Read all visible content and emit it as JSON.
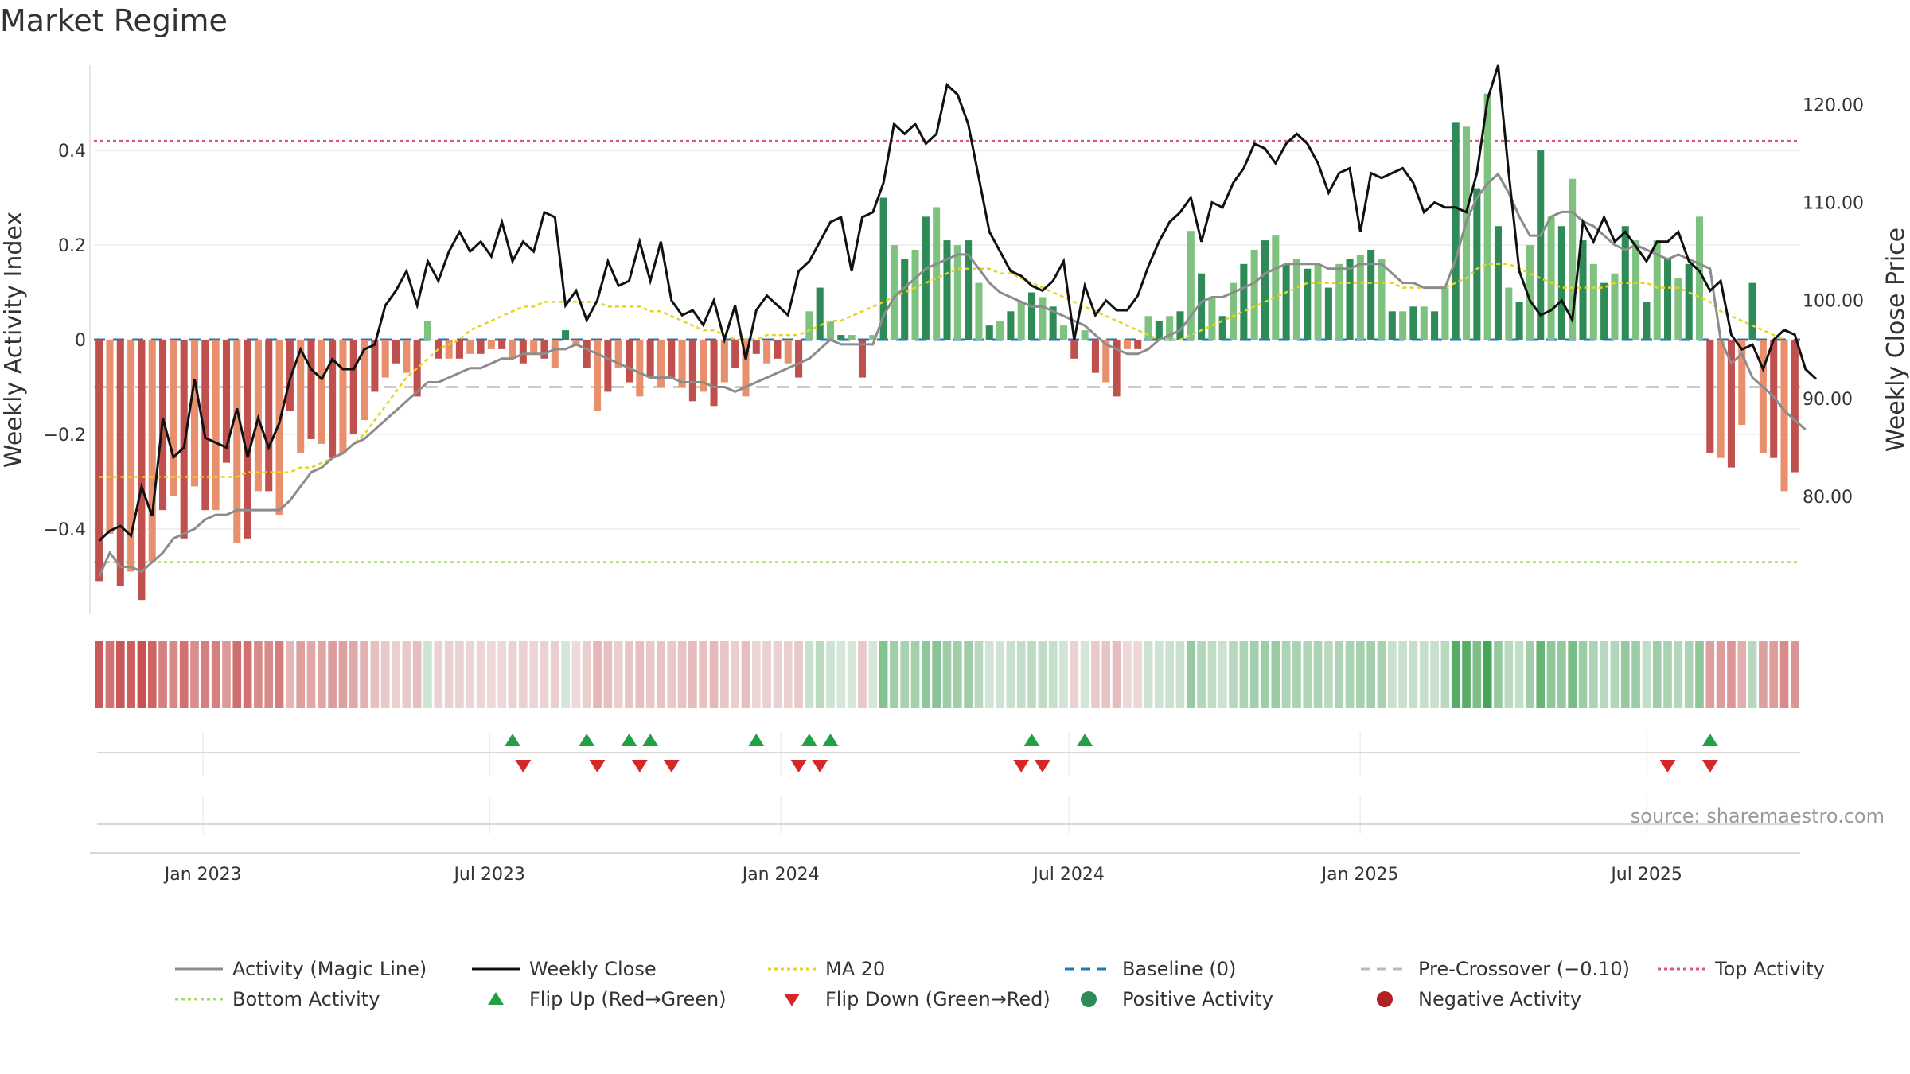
{
  "title": "Market Regime",
  "source": "source: sharemaestro.com",
  "colors": {
    "red_dark": "#c0504d",
    "red_light": "#e8906e",
    "green_dark": "#2e8b57",
    "green_light": "#7fc27f",
    "close": "#111111",
    "magic": "#8c8c8c",
    "ma20": "#e6d41a",
    "baseline": "#1f77b4",
    "pre": "#bbbbbb",
    "top": "#d9577a",
    "bottom": "#a8d86a",
    "flip_up": "#22a045",
    "flip_down": "#d62728"
  },
  "chart_data": {
    "type": "bar",
    "title": "Market Regime",
    "ylabel_left": "Weekly Activity Index",
    "ylabel_right": "Weekly Close Price",
    "y_left_range": [
      -0.58,
      0.58
    ],
    "y_left_ticks": [
      "0.4",
      "0.2",
      "0",
      "−0.2",
      "−0.4"
    ],
    "y_right_range": [
      68,
      124
    ],
    "y_right_ticks": [
      "120.00",
      "110.00",
      "100.00",
      "90.00",
      "80.00"
    ],
    "x_ticks": [
      "Jan 2023",
      "Jul 2023",
      "Jan 2024",
      "Jul 2024",
      "Jan 2025",
      "Jul 2025"
    ],
    "x_range": [
      "2022-10-24",
      "2025-10-06"
    ],
    "reference_lines": {
      "top_activity": 0.42,
      "bottom_activity": -0.47,
      "pre_crossover": -0.1,
      "baseline": 0
    },
    "activity": [
      -0.51,
      -0.41,
      -0.52,
      -0.49,
      -0.55,
      -0.47,
      -0.36,
      -0.33,
      -0.42,
      -0.31,
      -0.36,
      -0.36,
      -0.26,
      -0.43,
      -0.42,
      -0.32,
      -0.32,
      -0.37,
      -0.15,
      -0.24,
      -0.21,
      -0.22,
      -0.25,
      -0.24,
      -0.2,
      -0.17,
      -0.11,
      -0.08,
      -0.05,
      -0.07,
      -0.12,
      0.04,
      -0.04,
      -0.04,
      -0.04,
      -0.03,
      -0.03,
      -0.02,
      -0.02,
      -0.04,
      -0.05,
      -0.03,
      -0.04,
      -0.06,
      0.02,
      -0.01,
      -0.06,
      -0.15,
      -0.11,
      -0.06,
      -0.09,
      -0.12,
      -0.08,
      -0.1,
      -0.08,
      -0.1,
      -0.13,
      -0.11,
      -0.14,
      -0.09,
      -0.06,
      -0.12,
      -0.03,
      -0.05,
      -0.04,
      -0.05,
      -0.08,
      0.06,
      0.11,
      0.04,
      0.01,
      0.01,
      -0.08,
      0.01,
      0.3,
      0.2,
      0.17,
      0.19,
      0.26,
      0.28,
      0.21,
      0.2,
      0.21,
      0.12,
      0.03,
      0.04,
      0.06,
      0.08,
      0.1,
      0.09,
      0.07,
      0.03,
      -0.04,
      0.02,
      -0.07,
      -0.09,
      -0.12,
      -0.02,
      -0.02,
      0.05,
      0.04,
      0.05,
      0.06,
      0.23,
      0.14,
      0.09,
      0.05,
      0.12,
      0.16,
      0.19,
      0.21,
      0.22,
      0.16,
      0.17,
      0.15,
      0.16,
      0.11,
      0.16,
      0.17,
      0.18,
      0.19,
      0.17,
      0.06,
      0.06,
      0.07,
      0.07,
      0.06,
      0.11,
      0.46,
      0.45,
      0.32,
      0.52,
      0.24,
      0.11,
      0.08,
      0.2,
      0.4,
      0.26,
      0.24,
      0.34,
      0.21,
      0.16,
      0.12,
      0.14,
      0.24,
      0.21,
      0.08,
      0.21,
      0.17,
      0.13,
      0.16,
      0.26,
      -0.24,
      -0.25,
      -0.27,
      -0.18,
      0.12,
      -0.24,
      -0.25,
      -0.32,
      -0.28
    ],
    "close": [
      75.5,
      76.5,
      77,
      76,
      81,
      78,
      88,
      84,
      85,
      92,
      86,
      85.5,
      85,
      89,
      84,
      88,
      85,
      87.5,
      92,
      95,
      93,
      92,
      94,
      93,
      93,
      95,
      95.5,
      99.5,
      101,
      103,
      99.5,
      104,
      102,
      105,
      107,
      105,
      106,
      104.5,
      108,
      104,
      106,
      105,
      109,
      108.5,
      99.5,
      101,
      98,
      100,
      104,
      101.5,
      102,
      106,
      102,
      106,
      100,
      98.5,
      99,
      97.5,
      100,
      96,
      99.5,
      94,
      99,
      100.5,
      99.5,
      98.5,
      103,
      104,
      106,
      108,
      108.5,
      103,
      108.5,
      109,
      112,
      118,
      117,
      118,
      116,
      117,
      122,
      121,
      118,
      112.5,
      107,
      105,
      103,
      102.5,
      101.5,
      101,
      102,
      104,
      96,
      101.5,
      98.5,
      100,
      99,
      99,
      100.5,
      103.5,
      106,
      108,
      109,
      110.5,
      106,
      110,
      109.5,
      112,
      113.5,
      116,
      115.5,
      114,
      116,
      117,
      116,
      114,
      111,
      113,
      113.5,
      107,
      113,
      112.5,
      113,
      113.5,
      112,
      109,
      110,
      109.5,
      109.5,
      109,
      113,
      120.5,
      124,
      113,
      103,
      100,
      98.5,
      99,
      100,
      98,
      108,
      106,
      108.5,
      106,
      107,
      105.5,
      104,
      106,
      106,
      107,
      104,
      103,
      101,
      102,
      96.5,
      95,
      95.5,
      93,
      96,
      97,
      96.5,
      93,
      92
    ],
    "magic_line": [
      -0.5,
      -0.45,
      -0.48,
      -0.48,
      -0.49,
      -0.47,
      -0.45,
      -0.42,
      -0.41,
      -0.4,
      -0.38,
      -0.37,
      -0.37,
      -0.36,
      -0.36,
      -0.36,
      -0.36,
      -0.36,
      -0.34,
      -0.31,
      -0.28,
      -0.27,
      -0.25,
      -0.24,
      -0.22,
      -0.21,
      -0.19,
      -0.17,
      -0.15,
      -0.13,
      -0.11,
      -0.09,
      -0.09,
      -0.08,
      -0.07,
      -0.06,
      -0.06,
      -0.05,
      -0.04,
      -0.04,
      -0.03,
      -0.03,
      -0.03,
      -0.02,
      -0.02,
      -0.01,
      -0.02,
      -0.03,
      -0.04,
      -0.05,
      -0.06,
      -0.07,
      -0.08,
      -0.08,
      -0.08,
      -0.09,
      -0.09,
      -0.09,
      -0.1,
      -0.1,
      -0.11,
      -0.1,
      -0.09,
      -0.08,
      -0.07,
      -0.06,
      -0.05,
      -0.04,
      -0.02,
      0.0,
      -0.01,
      -0.01,
      -0.01,
      -0.01,
      0.05,
      0.09,
      0.11,
      0.13,
      0.15,
      0.16,
      0.17,
      0.18,
      0.18,
      0.15,
      0.12,
      0.1,
      0.09,
      0.08,
      0.07,
      0.07,
      0.06,
      0.05,
      0.04,
      0.03,
      0.01,
      -0.01,
      -0.02,
      -0.03,
      -0.03,
      -0.02,
      0.0,
      0.01,
      0.02,
      0.05,
      0.08,
      0.09,
      0.09,
      0.1,
      0.11,
      0.12,
      0.14,
      0.15,
      0.16,
      0.16,
      0.16,
      0.16,
      0.15,
      0.15,
      0.15,
      0.16,
      0.16,
      0.16,
      0.14,
      0.12,
      0.12,
      0.11,
      0.11,
      0.11,
      0.17,
      0.25,
      0.3,
      0.33,
      0.35,
      0.31,
      0.26,
      0.22,
      0.22,
      0.26,
      0.27,
      0.27,
      0.25,
      0.24,
      0.22,
      0.2,
      0.19,
      0.2,
      0.19,
      0.18,
      0.17,
      0.18,
      0.17,
      0.16,
      0.15,
      0.0,
      -0.05,
      -0.03,
      -0.08,
      -0.1,
      -0.12,
      -0.15,
      -0.17,
      -0.19
    ],
    "ma20": [
      -0.29,
      -0.29,
      -0.29,
      -0.29,
      -0.29,
      -0.29,
      -0.29,
      -0.29,
      -0.29,
      -0.29,
      -0.29,
      -0.29,
      -0.29,
      -0.29,
      -0.28,
      -0.28,
      -0.28,
      -0.28,
      -0.28,
      -0.27,
      -0.27,
      -0.26,
      -0.25,
      -0.24,
      -0.22,
      -0.2,
      -0.17,
      -0.14,
      -0.11,
      -0.08,
      -0.06,
      -0.04,
      -0.02,
      -0.01,
      0.0,
      0.02,
      0.03,
      0.04,
      0.05,
      0.06,
      0.07,
      0.07,
      0.08,
      0.08,
      0.08,
      0.08,
      0.08,
      0.08,
      0.07,
      0.07,
      0.07,
      0.07,
      0.06,
      0.06,
      0.05,
      0.04,
      0.03,
      0.02,
      0.02,
      0.01,
      0.0,
      0.0,
      0.0,
      0.01,
      0.01,
      0.01,
      0.01,
      0.02,
      0.03,
      0.04,
      0.04,
      0.05,
      0.06,
      0.07,
      0.08,
      0.09,
      0.1,
      0.11,
      0.12,
      0.13,
      0.14,
      0.15,
      0.15,
      0.15,
      0.15,
      0.14,
      0.14,
      0.13,
      0.12,
      0.11,
      0.1,
      0.09,
      0.08,
      0.07,
      0.06,
      0.05,
      0.04,
      0.03,
      0.02,
      0.01,
      0.0,
      0.0,
      0.0,
      0.01,
      0.02,
      0.03,
      0.04,
      0.05,
      0.06,
      0.07,
      0.08,
      0.09,
      0.1,
      0.11,
      0.12,
      0.12,
      0.12,
      0.12,
      0.12,
      0.12,
      0.12,
      0.12,
      0.12,
      0.11,
      0.11,
      0.11,
      0.11,
      0.11,
      0.12,
      0.13,
      0.15,
      0.16,
      0.16,
      0.16,
      0.15,
      0.14,
      0.13,
      0.12,
      0.11,
      0.11,
      0.11,
      0.11,
      0.11,
      0.12,
      0.12,
      0.12,
      0.12,
      0.11,
      0.11,
      0.11,
      0.1,
      0.09,
      0.08,
      0.06,
      0.05,
      0.04,
      0.03,
      0.02,
      0.01,
      0.0
    ],
    "flip_up_weeks": [
      39,
      46,
      50,
      52,
      62,
      67,
      69,
      88,
      93,
      152
    ],
    "flip_down_weeks": [
      40,
      47,
      51,
      54,
      66,
      68,
      87,
      89,
      148,
      152
    ]
  },
  "legend": [
    {
      "label": "Activity (Magic Line)",
      "kind": "line",
      "color": "#8c8c8c",
      "dash": ""
    },
    {
      "label": "Weekly Close",
      "kind": "line",
      "color": "#111111",
      "dash": ""
    },
    {
      "label": "MA 20",
      "kind": "line",
      "color": "#e6d41a",
      "dash": "4 4"
    },
    {
      "label": "Baseline (0)",
      "kind": "line",
      "color": "#1f77b4",
      "dash": "12 8"
    },
    {
      "label": "Pre-Crossover (−0.10)",
      "kind": "line",
      "color": "#bbbbbb",
      "dash": "12 8"
    },
    {
      "label": "Top Activity",
      "kind": "line",
      "color": "#d9577a",
      "dash": "4 4"
    },
    {
      "label": "Bottom Activity",
      "kind": "line",
      "color": "#a8d86a",
      "dash": "4 4"
    },
    {
      "label": "Flip Up (Red→Green)",
      "kind": "tri-up",
      "color": "#22a045",
      "dash": ""
    },
    {
      "label": "Flip Down (Green→Red)",
      "kind": "tri-down",
      "color": "#d62728",
      "dash": ""
    },
    {
      "label": "Positive Activity",
      "kind": "dot",
      "color": "#2e8b57",
      "dash": ""
    },
    {
      "label": "Negative Activity",
      "kind": "dot",
      "color": "#b22222",
      "dash": ""
    }
  ]
}
